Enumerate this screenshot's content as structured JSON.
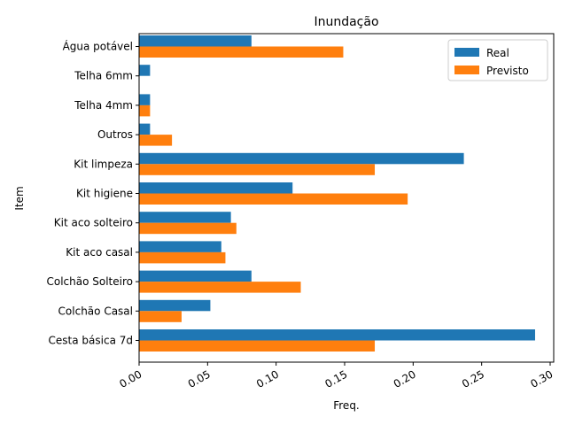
{
  "chart_data": {
    "type": "bar",
    "orientation": "horizontal",
    "title": "Inundação",
    "xlabel": "Freq.",
    "ylabel": "Item",
    "xlim": [
      0,
      0.3
    ],
    "xticks": [
      "0.00",
      "0.05",
      "0.10",
      "0.15",
      "0.20",
      "0.25",
      "0.30"
    ],
    "grid": false,
    "legend_position": "top-right",
    "categories": [
      "Cesta básica 7d",
      "Colchão Casal",
      "Colchão Solteiro",
      "Kit aco casal",
      "Kit aco solteiro",
      "Kit higiene",
      "Kit limpeza",
      "Outros",
      "Telha 4mm",
      "Telha 6mm",
      "Água potável"
    ],
    "series": [
      {
        "name": "Real",
        "color": "#1f77b4",
        "values": [
          0.289,
          0.052,
          0.082,
          0.06,
          0.067,
          0.112,
          0.237,
          0.008,
          0.008,
          0.008,
          0.082
        ]
      },
      {
        "name": "Previsto",
        "color": "#ff7f0e",
        "values": [
          0.172,
          0.031,
          0.118,
          0.063,
          0.071,
          0.196,
          0.172,
          0.024,
          0.008,
          0.0,
          0.149
        ]
      }
    ]
  }
}
